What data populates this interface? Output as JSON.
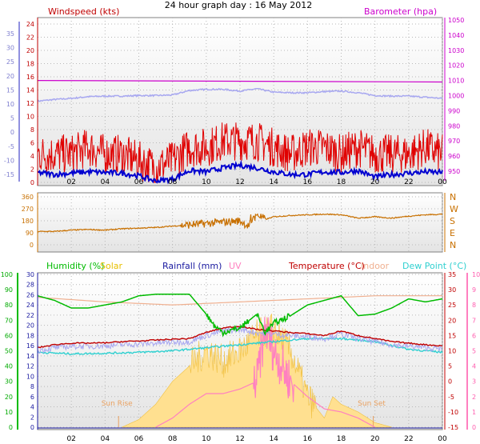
{
  "title": "24 hour graph day : 16 May 2012",
  "colors": {
    "windspeed": "#e00000",
    "windavg": "#0000d0",
    "barometer": "#cc00cc",
    "baroTrace": "#a8a8f0",
    "winddir": "#c87000",
    "humidity": "#00bb00",
    "solar": "#e8c000",
    "solarFill": "#ffe090",
    "rainfall": "#1a1aa0",
    "uv": "#ff80c0",
    "temperature": "#c00000",
    "indoor": "#f0b090",
    "dewpoint": "#30d0d0"
  },
  "chart_data": [
    {
      "type": "line",
      "id": "wind",
      "xticks": [
        "02",
        "04",
        "06",
        "08",
        "10",
        "12",
        "14",
        "16",
        "18",
        "20",
        "22",
        "00"
      ],
      "legend": {
        "left": "Windspeed (kts)",
        "right": "Barometer (hpa)"
      },
      "yaxis_outer": {
        "ticks": [
          35,
          30,
          25,
          20,
          15,
          10,
          5,
          0,
          -5,
          -10,
          -15
        ],
        "range": [
          -15,
          35
        ]
      },
      "yaxis_left": {
        "ticks": [
          24,
          22,
          20,
          18,
          16,
          14,
          12,
          10,
          8,
          6,
          4,
          2,
          0
        ],
        "range": [
          0,
          24
        ]
      },
      "yaxis_right": {
        "ticks": [
          1050,
          1040,
          1030,
          1020,
          1010,
          1000,
          990,
          980,
          970,
          960,
          950
        ],
        "range": [
          950,
          1050
        ]
      },
      "series": [
        {
          "name": "Windspeed (kts)",
          "axis": "left",
          "x": [
            0,
            1,
            2,
            3,
            4,
            5,
            6,
            7,
            8,
            9,
            10,
            11,
            12,
            13,
            14,
            15,
            16,
            17,
            18,
            19,
            20,
            21,
            22,
            23,
            24
          ],
          "values": [
            4,
            4,
            4,
            5,
            4,
            4,
            3,
            2,
            3,
            5,
            5,
            6,
            6,
            6,
            5,
            4,
            5,
            5,
            4,
            5,
            4,
            4,
            4,
            5,
            4
          ]
        },
        {
          "name": "Windspeed avg",
          "axis": "left",
          "x": [
            0,
            1,
            2,
            3,
            4,
            5,
            6,
            7,
            8,
            9,
            10,
            11,
            12,
            13,
            14,
            15,
            16,
            17,
            18,
            19,
            20,
            21,
            22,
            23,
            24
          ],
          "values": [
            1.5,
            1.2,
            1.4,
            1.6,
            1.5,
            1.4,
            1,
            0.2,
            0.5,
            1.8,
            1.6,
            2.2,
            2.6,
            2.2,
            1.6,
            1.2,
            1.2,
            1.6,
            1.5,
            1.8,
            0.8,
            1.2,
            1.4,
            1.6,
            1.5
          ]
        },
        {
          "name": "Barometer (hpa)",
          "axis": "right",
          "x": [
            0,
            24
          ],
          "values": [
            1010,
            1009
          ]
        },
        {
          "name": "Barometer trace",
          "axis": "outer",
          "x": [
            0,
            1,
            2,
            3,
            4,
            5,
            6,
            7,
            8,
            9,
            10,
            11,
            12,
            13,
            14,
            15,
            16,
            17,
            18,
            19,
            20,
            21,
            22,
            23,
            24
          ],
          "values": [
            11,
            11.6,
            12,
            12.6,
            12.8,
            12.8,
            13,
            13,
            13.2,
            14.8,
            15.2,
            15.2,
            14.6,
            15.4,
            14.2,
            14,
            14,
            14.4,
            14.6,
            14,
            13,
            12.8,
            12.8,
            12.4,
            12
          ]
        }
      ]
    },
    {
      "type": "line",
      "id": "direction",
      "xticks": [],
      "yaxis_left": {
        "ticks": [
          360,
          270,
          180,
          90,
          0
        ],
        "range": [
          0,
          360
        ]
      },
      "yaxis_right": {
        "ticks": [
          "N",
          "W",
          "S",
          "E",
          "N"
        ]
      },
      "series": [
        {
          "name": "Wind direction",
          "x": [
            0,
            1,
            2,
            3,
            4,
            5,
            6,
            7,
            8,
            9,
            10,
            11,
            12,
            12.5,
            13,
            13.5,
            14,
            15,
            16,
            17,
            18,
            19,
            20,
            21,
            22,
            23,
            24
          ],
          "values": [
            100,
            100,
            110,
            115,
            110,
            120,
            125,
            130,
            140,
            150,
            160,
            170,
            180,
            140,
            230,
            190,
            210,
            220,
            225,
            230,
            225,
            200,
            210,
            200,
            215,
            225,
            230
          ]
        }
      ]
    },
    {
      "type": "line",
      "id": "multi",
      "xticks": [
        "02",
        "04",
        "06",
        "08",
        "10",
        "12",
        "14",
        "16",
        "18",
        "20",
        "22",
        "00"
      ],
      "legend": [
        "Humidity (%)",
        "Solar",
        "Rainfall (mm)",
        "UV",
        "Temperature (°C)",
        "Indoor",
        "Dew Point (°C)"
      ],
      "yaxis_humidity": {
        "ticks": [
          100,
          90,
          80,
          70,
          60,
          50,
          40,
          30,
          20,
          10,
          0
        ],
        "range": [
          0,
          100
        ]
      },
      "yaxis_rain": {
        "ticks": [
          30,
          28,
          26,
          24,
          22,
          20,
          18,
          16,
          14,
          12,
          10,
          8,
          6,
          4,
          2,
          0
        ],
        "range": [
          0,
          30
        ]
      },
      "yaxis_temp": {
        "ticks": [
          35,
          30,
          25,
          20,
          15,
          10,
          5,
          0,
          -5,
          -10,
          -15
        ],
        "range": [
          -15,
          35
        ]
      },
      "yaxis_uv": {
        "ticks": [
          10,
          9,
          8,
          7,
          6,
          5,
          4,
          3,
          2,
          1,
          0
        ],
        "range": [
          0,
          10
        ]
      },
      "annotations": [
        {
          "text": "Sun Rise",
          "x": 4.8
        },
        {
          "text": "Sun Set",
          "x": 19.9
        }
      ],
      "series": [
        {
          "name": "Humidity (%)",
          "axis": "humidity",
          "x": [
            0,
            1,
            2,
            3,
            4,
            5,
            6,
            7,
            8,
            9,
            10,
            10.5,
            11,
            12,
            13,
            13.5,
            14,
            15,
            16,
            17,
            18,
            19,
            20,
            21,
            22,
            23,
            24
          ],
          "values": [
            86,
            83,
            78,
            78,
            80,
            82,
            86,
            87,
            87,
            87,
            74,
            66,
            62,
            65,
            74,
            62,
            68,
            73,
            80,
            83,
            86,
            73,
            74,
            78,
            84,
            82,
            84
          ]
        },
        {
          "name": "Temperature (°C)",
          "axis": "temp",
          "x": [
            0,
            1,
            2,
            3,
            4,
            5,
            6,
            7,
            8,
            9,
            10,
            11,
            12,
            13,
            14,
            15,
            16,
            17,
            18,
            19,
            20,
            21,
            22,
            23,
            24
          ],
          "values": [
            11,
            12,
            12.5,
            12.5,
            12.6,
            13,
            13.2,
            13.5,
            13.8,
            14,
            16,
            17.5,
            18,
            17,
            16.5,
            16,
            15.6,
            15,
            16.5,
            15,
            14,
            13,
            12.5,
            12,
            11.6
          ]
        },
        {
          "name": "Indoor",
          "axis": "temp",
          "x": [
            0,
            4,
            8,
            12,
            16,
            20,
            24
          ],
          "values": [
            27.5,
            26,
            25,
            26,
            27,
            28,
            28
          ]
        },
        {
          "name": "Dew Point (°C)",
          "axis": "temp",
          "x": [
            0,
            2,
            4,
            6,
            8,
            10,
            12,
            14,
            16,
            18,
            20,
            22,
            24
          ],
          "values": [
            9.5,
            9,
            9.2,
            9.5,
            10,
            11,
            12,
            13,
            14,
            14,
            13,
            10.5,
            9.5
          ]
        },
        {
          "name": "Solar",
          "axis": "uv",
          "x": [
            5,
            6,
            7,
            8,
            9,
            10,
            11,
            12,
            13,
            14,
            15,
            16,
            17,
            17.5,
            18,
            19,
            20,
            21
          ],
          "values": [
            0,
            0.5,
            1.5,
            3,
            4,
            5,
            4.3,
            5,
            6,
            6.5,
            5,
            2,
            0.6,
            2,
            1.5,
            1,
            0.3,
            0
          ]
        },
        {
          "name": "UV",
          "axis": "uv",
          "x": [
            7,
            8,
            9,
            10,
            11,
            12,
            13,
            13.5,
            14,
            15,
            16,
            17,
            18,
            19,
            20
          ],
          "values": [
            0,
            0.6,
            1.5,
            2.2,
            2.2,
            2.5,
            3,
            6.5,
            5,
            3,
            2,
            1.2,
            1,
            0.6,
            0
          ]
        },
        {
          "name": "Rainfall (mm)",
          "axis": "rain",
          "x": [
            0,
            24
          ],
          "values": [
            0,
            0
          ]
        }
      ]
    }
  ]
}
